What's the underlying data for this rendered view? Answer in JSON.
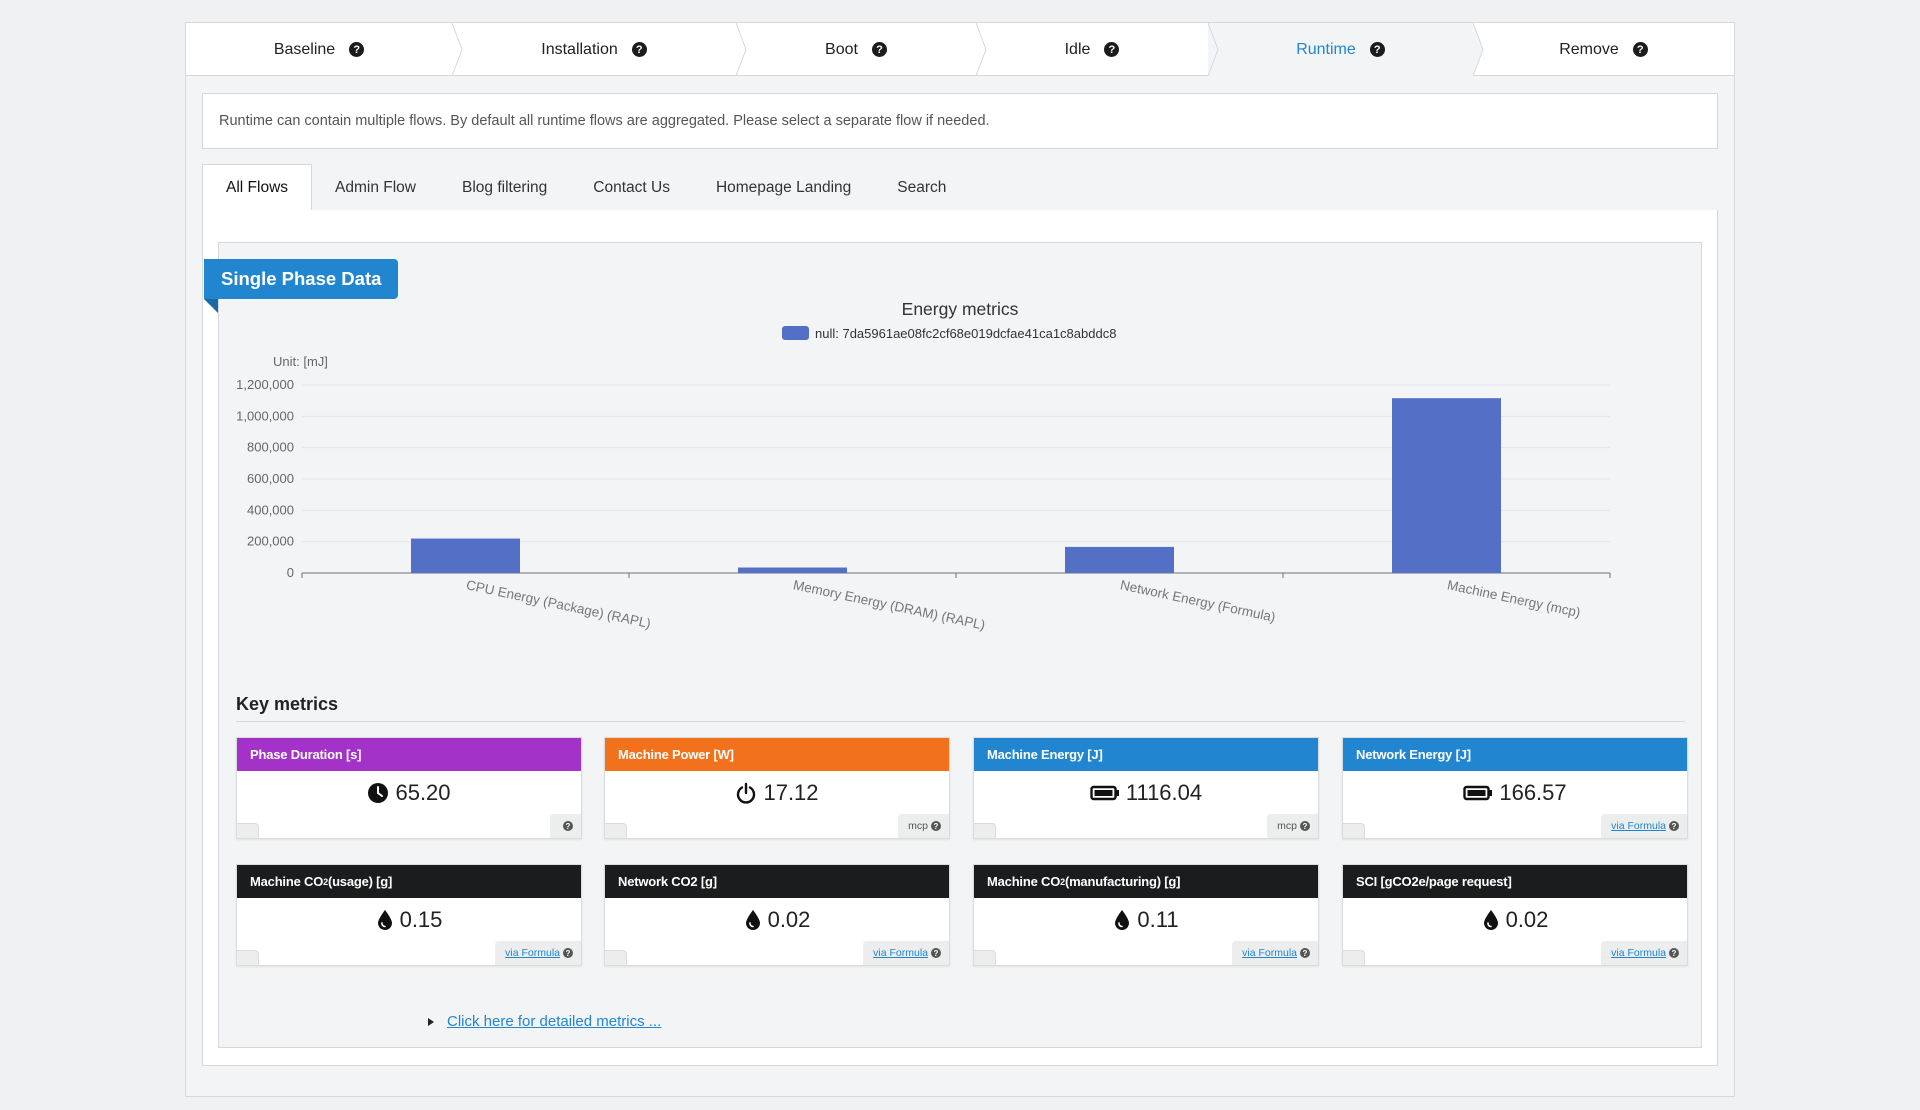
{
  "steps": [
    {
      "label": "Baseline",
      "active": false
    },
    {
      "label": "Installation",
      "active": false
    },
    {
      "label": "Boot",
      "active": false
    },
    {
      "label": "Idle",
      "active": false
    },
    {
      "label": "Runtime",
      "active": true
    },
    {
      "label": "Remove",
      "active": false
    }
  ],
  "info_message": "Runtime can contain multiple flows. By default all runtime flows are aggregated. Please select a separate flow if needed.",
  "tabs": [
    {
      "label": "All Flows",
      "active": true
    },
    {
      "label": "Admin Flow",
      "active": false
    },
    {
      "label": "Blog filtering",
      "active": false
    },
    {
      "label": "Contact Us",
      "active": false
    },
    {
      "label": "Homepage Landing",
      "active": false
    },
    {
      "label": "Search",
      "active": false
    }
  ],
  "ribbon_label": "Single Phase Data",
  "chart_data": {
    "type": "bar",
    "title": "Energy metrics",
    "unit_label": "Unit: [mJ]",
    "categories": [
      "CPU Energy (Package) (RAPL)",
      "Memory Energy (DRAM) (RAPL)",
      "Network Energy (Formula)",
      "Machine Energy (mcp)"
    ],
    "series": [
      {
        "name": "null: 7da5961ae08fc2cf68e019dcfae41ca1c8abddc8",
        "color": "#5470c6",
        "values": [
          220000,
          35000,
          166570,
          1116040
        ]
      }
    ],
    "yticks": [
      "0",
      "200,000",
      "400,000",
      "600,000",
      "800,000",
      "1,000,000",
      "1,200,000"
    ],
    "ylim": [
      0,
      1200000
    ],
    "grid": true,
    "legend_position": "top-center"
  },
  "key_metrics": {
    "title": "Key metrics",
    "cards": [
      {
        "title": "Phase Duration [s]",
        "color": "#a333c8",
        "icon": "clock-icon",
        "value": "65.20",
        "source": "",
        "source_link": false
      },
      {
        "title": "Machine Power [W]",
        "color": "#f2711c",
        "icon": "power-icon",
        "value": "17.12",
        "source": "mcp",
        "source_link": false
      },
      {
        "title": "Machine Energy [J]",
        "color": "#2185d0",
        "icon": "battery-icon",
        "value": "1116.04",
        "source": "mcp",
        "source_link": false
      },
      {
        "title": "Network Energy [J]",
        "color": "#2185d0",
        "icon": "battery-icon",
        "value": "166.57",
        "source": "via Formula",
        "source_link": true
      },
      {
        "title_main": "Machine CO",
        "title_sub": "2",
        "title_rest": " (usage) [g]",
        "color": "#1b1c1d",
        "icon": "drop-icon",
        "value": "0.15",
        "source": "via Formula",
        "source_link": true
      },
      {
        "title": "Network CO2 [g]",
        "color": "#1b1c1d",
        "icon": "drop-icon",
        "value": "0.02",
        "source": "via Formula",
        "source_link": true
      },
      {
        "title_main": "Machine CO",
        "title_sub": "2",
        "title_rest": " (manufacturing) [g]",
        "color": "#1b1c1d",
        "icon": "drop-icon",
        "value": "0.11",
        "source": "via Formula",
        "source_link": true
      },
      {
        "title": "SCI [gCO2e/page request]",
        "color": "#1b1c1d",
        "icon": "drop-icon",
        "value": "0.02",
        "source": "via Formula",
        "source_link": true
      }
    ]
  },
  "details_link": "Click here for detailed metrics ..."
}
